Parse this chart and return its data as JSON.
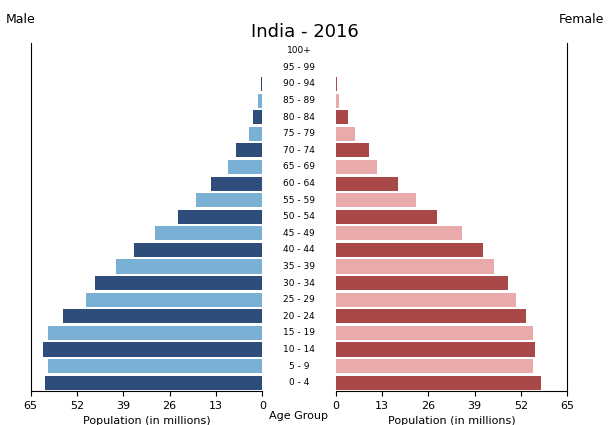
{
  "title": "India - 2016",
  "age_groups": [
    "0 - 4",
    "5 - 9",
    "10 - 14",
    "15 - 19",
    "20 - 24",
    "25 - 29",
    "30 - 34",
    "35 - 39",
    "40 - 44",
    "45 - 49",
    "50 - 54",
    "55 - 59",
    "60 - 64",
    "65 - 69",
    "70 - 74",
    "75 - 79",
    "80 - 84",
    "85 - 89",
    "90 - 94",
    "95 - 99",
    "100+"
  ],
  "male": [
    61.0,
    60.0,
    61.5,
    60.0,
    56.0,
    49.5,
    47.0,
    41.0,
    36.0,
    30.0,
    23.5,
    18.5,
    14.5,
    9.5,
    7.5,
    3.8,
    2.5,
    1.2,
    0.4,
    0.2,
    0.1
  ],
  "female": [
    57.5,
    55.5,
    56.0,
    55.5,
    53.5,
    50.5,
    48.5,
    44.5,
    41.5,
    35.5,
    28.5,
    22.5,
    17.5,
    11.5,
    9.5,
    5.5,
    3.5,
    1.0,
    0.3,
    0.15,
    0.1
  ],
  "xlim": 65,
  "xlabel_left": "Population (in millions)",
  "xlabel_center": "Age Group",
  "xlabel_right": "Population (in millions)",
  "label_male": "Male",
  "label_female": "Female",
  "xticks": [
    0,
    13,
    26,
    39,
    52,
    65
  ],
  "background_color": "#ffffff",
  "bar_height": 0.85,
  "male_dark": "#2e4d7b",
  "male_light": "#7ab0d4",
  "female_dark": "#a84848",
  "female_light": "#e8aaaa"
}
